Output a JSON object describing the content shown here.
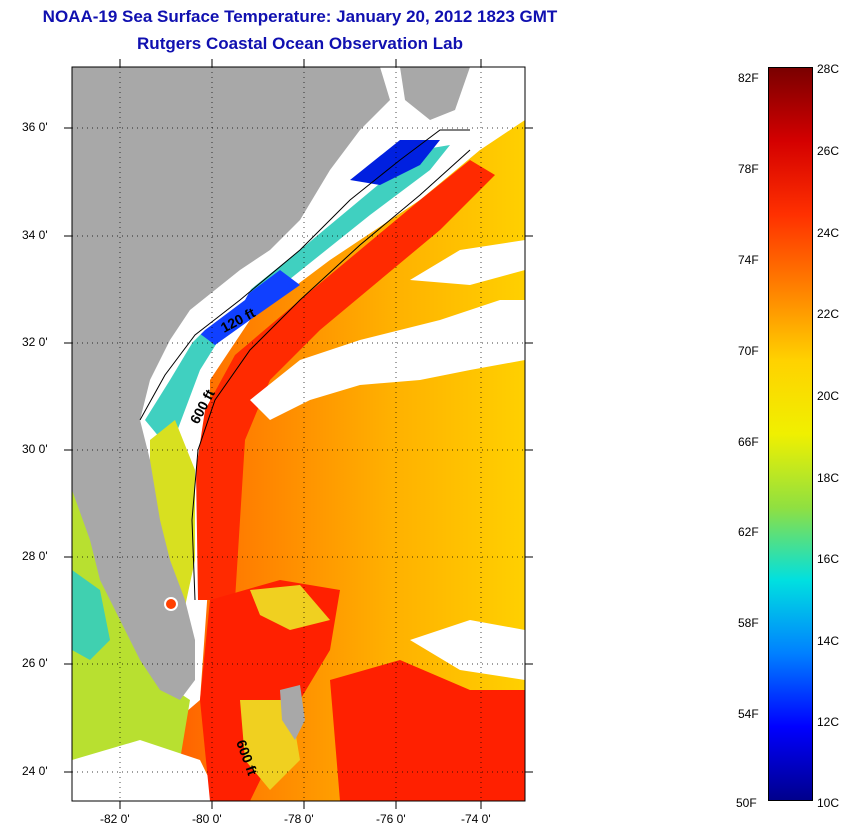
{
  "title_line1": "NOAA-19 Sea Surface Temperature:  January 20, 2012 1823 GMT",
  "title_line2": "Rutgers Coastal Ocean Observation Lab",
  "map": {
    "lat_labels": [
      "36 0'",
      "34 0'",
      "32 0'",
      "30 0'",
      "28 0'",
      "26 0'",
      "24 0'"
    ],
    "lon_labels": [
      "-82 0'",
      "-80 0'",
      "-78 0'",
      "-76 0'",
      "-74 0'"
    ],
    "isobath_labels": [
      "120 ft",
      "600 ft",
      "600 ft"
    ]
  },
  "colorbar": {
    "fahrenheit_labels": [
      "82F",
      "78F",
      "74F",
      "70F",
      "66F",
      "62F",
      "58F",
      "54F",
      "50F"
    ],
    "celsius_labels": [
      "28C",
      "26C",
      "24C",
      "22C",
      "20C",
      "18C",
      "16C",
      "14C",
      "12C",
      "10C"
    ],
    "colors": [
      "#7a0000",
      "#d40000",
      "#ff3000",
      "#ff8000",
      "#ffd200",
      "#f0f000",
      "#90e040",
      "#00e0e0",
      "#0080ff",
      "#0000ff",
      "#00008c"
    ]
  },
  "colors": {
    "land": "#a8a8a8",
    "cloud": "#ffffff",
    "title": "#1010b0"
  }
}
